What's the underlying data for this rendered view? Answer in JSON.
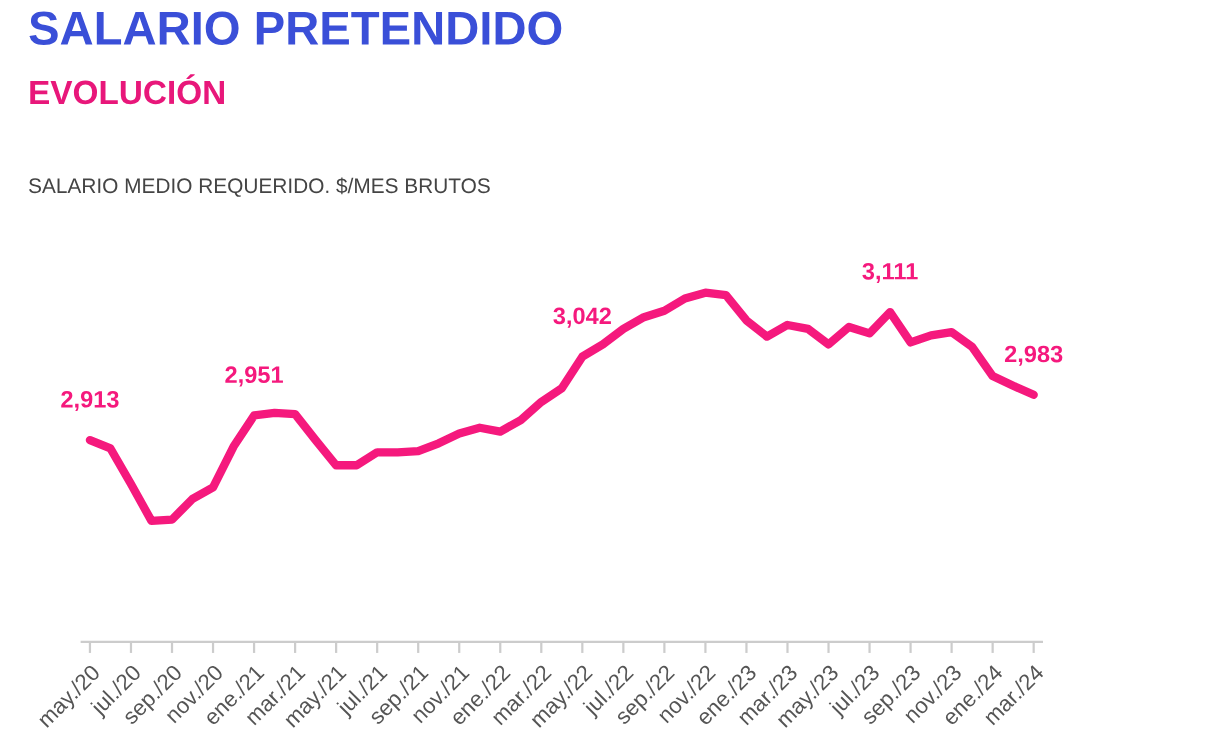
{
  "chart_data": {
    "type": "line",
    "title": "SALARIO PRETENDIDO",
    "subtitle": "EVOLUCIÓN",
    "annotations": [
      "SALARIO MEDIO REQUERIDO. $/MES BRUTOS"
    ],
    "categories": [
      "may./20",
      null,
      "jul./20",
      null,
      "sep./20",
      null,
      "nov./20",
      null,
      "ene./21",
      null,
      "mar./21",
      null,
      "may./21",
      null,
      "jul./21",
      null,
      "sep./21",
      null,
      "nov./21",
      null,
      "ene./22",
      null,
      "mar./22",
      null,
      "may./22",
      null,
      "jul./22",
      null,
      "sep./22",
      null,
      "nov./22",
      null,
      "ene./23",
      null,
      "mar./23",
      null,
      "may./23",
      null,
      "jul./23",
      null,
      "sep./23",
      null,
      "nov./23",
      null,
      "ene./24",
      null,
      "mar./24"
    ],
    "series": [
      {
        "color": "#f5197d",
        "values": [
          2913,
          2900,
          2845,
          2788,
          2790,
          2822,
          2840,
          2903,
          2951,
          2955,
          2953,
          2913,
          2874,
          2874,
          2894,
          2894,
          2896,
          2908,
          2923,
          2932,
          2926,
          2944,
          2972,
          2993,
          3042,
          3061,
          3085,
          3103,
          3113,
          3132,
          3141,
          3137,
          3098,
          3073,
          3091,
          3085,
          3061,
          3088,
          3078,
          3111,
          3064,
          3075,
          3080,
          3057,
          3012,
          2997,
          2983
        ],
        "value_labels": [
          "2,913",
          null,
          null,
          null,
          null,
          null,
          null,
          null,
          "2,951",
          null,
          null,
          null,
          null,
          null,
          null,
          null,
          null,
          null,
          null,
          null,
          null,
          null,
          null,
          null,
          "3,042",
          null,
          null,
          null,
          null,
          null,
          null,
          null,
          null,
          null,
          null,
          null,
          null,
          null,
          null,
          "3,111",
          null,
          null,
          null,
          null,
          null,
          null,
          "2,983"
        ]
      }
    ],
    "grid": false,
    "marker": "none",
    "line_style": "solid"
  }
}
